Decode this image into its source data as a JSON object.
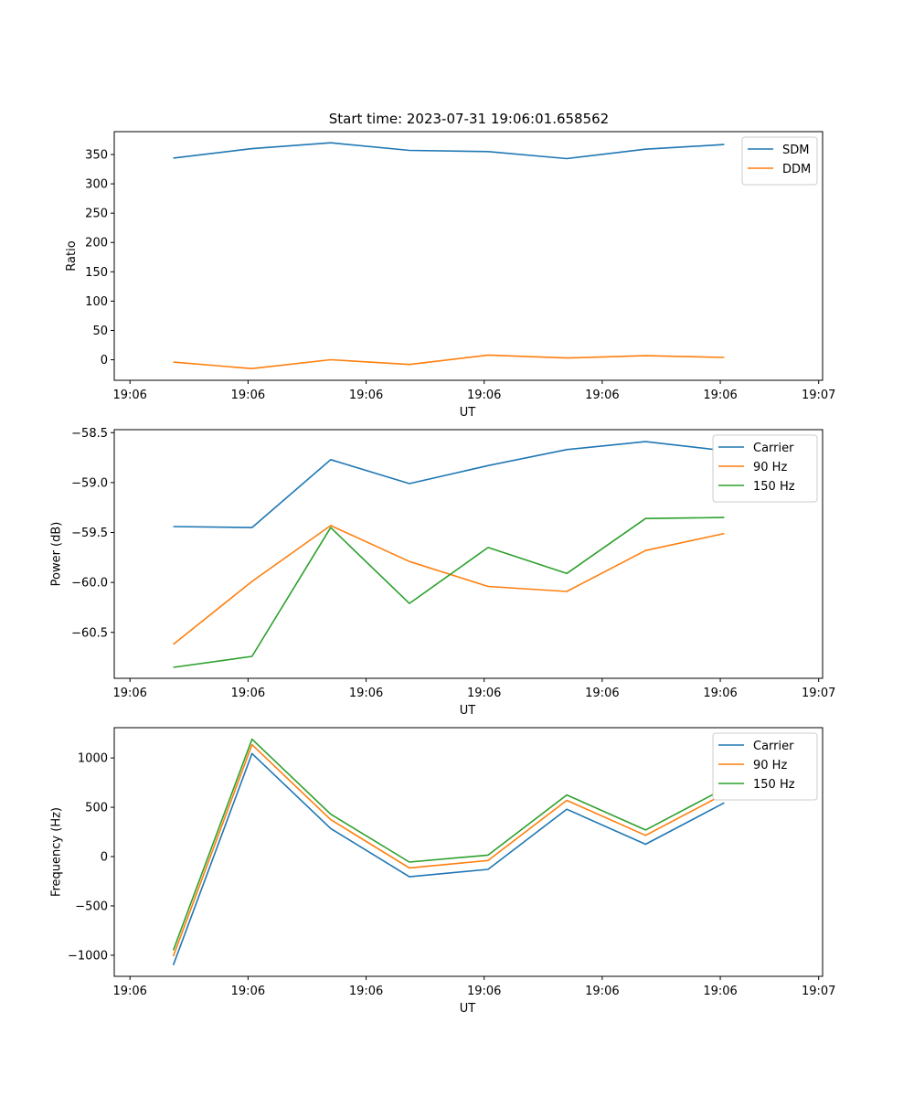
{
  "figure": {
    "title": "Start time: 2023-07-31 19:06:01.658562"
  },
  "chart_data": [
    {
      "type": "line",
      "title": "Start time: 2023-07-31 19:06:01.658562",
      "xlabel": "UT",
      "ylabel": "Ratio",
      "x": [
        1,
        2,
        3,
        4,
        5,
        6,
        7,
        8
      ],
      "xlim": [
        0.25,
        9.25
      ],
      "xticks": [
        {
          "value": 0.45,
          "label": "19:06"
        },
        {
          "value": 1.95,
          "label": "19:06"
        },
        {
          "value": 3.45,
          "label": "19:06"
        },
        {
          "value": 4.95,
          "label": "19:06"
        },
        {
          "value": 6.45,
          "label": "19:06"
        },
        {
          "value": 7.95,
          "label": "19:06"
        },
        {
          "value": 9.2,
          "label": "19:07"
        }
      ],
      "ylim": [
        -35,
        389
      ],
      "yticks": [
        {
          "value": 0,
          "label": "0"
        },
        {
          "value": 50,
          "label": "50"
        },
        {
          "value": 100,
          "label": "100"
        },
        {
          "value": 150,
          "label": "150"
        },
        {
          "value": 200,
          "label": "200"
        },
        {
          "value": 250,
          "label": "250"
        },
        {
          "value": 300,
          "label": "300"
        },
        {
          "value": 350,
          "label": "350"
        }
      ],
      "legend_position": "upper-right",
      "series": [
        {
          "name": "SDM",
          "color": "#1f77b4",
          "values": [
            344,
            360,
            370,
            357,
            355,
            343,
            359,
            367
          ]
        },
        {
          "name": "DDM",
          "color": "#ff7f0e",
          "values": [
            -4,
            -15,
            0,
            -8,
            8,
            3,
            7,
            4
          ]
        }
      ]
    },
    {
      "type": "line",
      "title": "",
      "xlabel": "UT",
      "ylabel": "Power (dB)",
      "x": [
        1,
        2,
        3,
        4,
        5,
        6,
        7,
        8
      ],
      "xlim": [
        0.25,
        9.25
      ],
      "xticks": [
        {
          "value": 0.45,
          "label": "19:06"
        },
        {
          "value": 1.95,
          "label": "19:06"
        },
        {
          "value": 3.45,
          "label": "19:06"
        },
        {
          "value": 4.95,
          "label": "19:06"
        },
        {
          "value": 6.45,
          "label": "19:06"
        },
        {
          "value": 7.95,
          "label": "19:06"
        },
        {
          "value": 9.2,
          "label": "19:07"
        }
      ],
      "ylim": [
        -60.96,
        -58.47
      ],
      "yticks": [
        {
          "value": -60.5,
          "label": "−60.5"
        },
        {
          "value": -60.0,
          "label": "−60.0"
        },
        {
          "value": -59.5,
          "label": "−59.5"
        },
        {
          "value": -59.0,
          "label": "−59.0"
        },
        {
          "value": -58.5,
          "label": "−58.5"
        }
      ],
      "legend_position": "upper-right",
      "series": [
        {
          "name": "Carrier",
          "color": "#1f77b4",
          "values": [
            -59.44,
            -59.45,
            -58.77,
            -59.01,
            -58.83,
            -58.67,
            -58.59,
            -58.68
          ]
        },
        {
          "name": "90 Hz",
          "color": "#ff7f0e",
          "values": [
            -60.62,
            -59.99,
            -59.43,
            -59.79,
            -60.04,
            -60.09,
            -59.68,
            -59.51
          ]
        },
        {
          "name": "150 Hz",
          "color": "#2ca02c",
          "values": [
            -60.85,
            -60.74,
            -59.45,
            -60.21,
            -59.65,
            -59.91,
            -59.36,
            -59.35
          ]
        }
      ]
    },
    {
      "type": "line",
      "title": "",
      "xlabel": "UT",
      "ylabel": "Frequency (Hz)",
      "x": [
        1,
        2,
        3,
        4,
        5,
        6,
        7,
        8
      ],
      "xlim": [
        0.25,
        9.25
      ],
      "xticks": [
        {
          "value": 0.45,
          "label": "19:06"
        },
        {
          "value": 1.95,
          "label": "19:06"
        },
        {
          "value": 3.45,
          "label": "19:06"
        },
        {
          "value": 4.95,
          "label": "19:06"
        },
        {
          "value": 6.45,
          "label": "19:06"
        },
        {
          "value": 7.95,
          "label": "19:06"
        },
        {
          "value": 9.2,
          "label": "19:07"
        }
      ],
      "ylim": [
        -1214,
        1307
      ],
      "yticks": [
        {
          "value": -1000,
          "label": "−1000"
        },
        {
          "value": -500,
          "label": "−500"
        },
        {
          "value": 0,
          "label": "0"
        },
        {
          "value": 500,
          "label": "500"
        },
        {
          "value": 1000,
          "label": "1000"
        }
      ],
      "legend_position": "upper-right",
      "series": [
        {
          "name": "Carrier",
          "color": "#1f77b4",
          "values": [
            -1100,
            1045,
            285,
            -205,
            -130,
            480,
            125,
            545
          ]
        },
        {
          "name": "90 Hz",
          "color": "#ff7f0e",
          "values": [
            -1010,
            1135,
            375,
            -115,
            -40,
            570,
            215,
            635
          ]
        },
        {
          "name": "150 Hz",
          "color": "#2ca02c",
          "values": [
            -950,
            1190,
            430,
            -55,
            15,
            625,
            270,
            690
          ]
        }
      ]
    }
  ]
}
